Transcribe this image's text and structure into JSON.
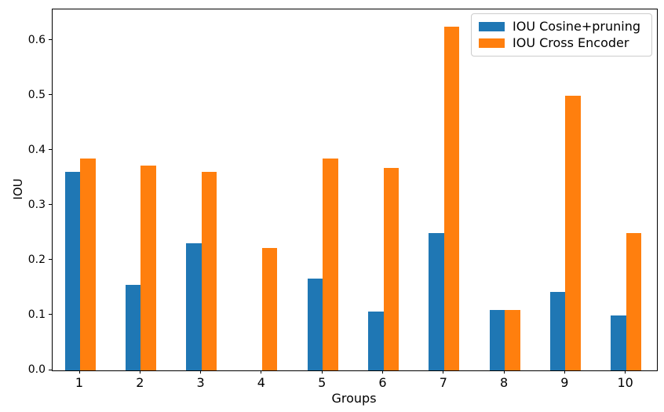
{
  "figure": {
    "background": "#ffffff",
    "spine_color": "#000000",
    "text_color": "#000000",
    "legend_border_color": "#cccccc"
  },
  "chart_data": {
    "type": "bar",
    "title": "",
    "xlabel": "Groups",
    "ylabel": "IOU",
    "categories": [
      "1",
      "2",
      "3",
      "4",
      "5",
      "6",
      "7",
      "8",
      "9",
      "10"
    ],
    "series": [
      {
        "name": "IOU Cosine+pruning",
        "color": "#1f77b4",
        "values": [
          0.361,
          0.155,
          0.232,
          0.0,
          0.167,
          0.107,
          0.25,
          0.11,
          0.143,
          0.1
        ]
      },
      {
        "name": "IOU Cross Encoder",
        "color": "#ff7f0e",
        "values": [
          0.385,
          0.373,
          0.362,
          0.223,
          0.386,
          0.369,
          0.625,
          0.11,
          0.5,
          0.25
        ]
      }
    ],
    "ylim": [
      0,
      0.657
    ],
    "yticks": [
      0.0,
      0.1,
      0.2,
      0.3,
      0.4,
      0.5,
      0.6
    ],
    "grid": false,
    "legend_position": "upper right"
  }
}
